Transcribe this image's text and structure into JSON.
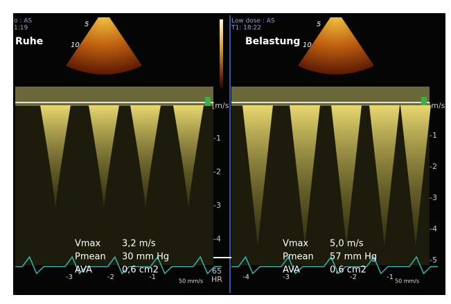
{
  "panels": [
    {
      "header": [
        "o : AS",
        "1:19"
      ],
      "label": "Ruhe",
      "depth": [
        "5",
        "10"
      ],
      "scale_unit": "[m/s",
      "scale": [
        "-1",
        "-2",
        "-3",
        "-4"
      ],
      "ecg": [
        "-3",
        "-2",
        "-1"
      ],
      "speed": "50 mm/s",
      "measurements": [
        [
          "Vmax",
          "3,2 m/s"
        ],
        [
          "Pmean",
          "30 mm Hg"
        ],
        [
          "AVA",
          "0,6 cm2"
        ]
      ]
    },
    {
      "header": [
        "Low dose : AS",
        "T1: 18:22"
      ],
      "label": "Belastung",
      "depth": [
        "5",
        "10"
      ],
      "scale_unit": "[m/s",
      "scale": [
        "-1",
        "-2",
        "-3",
        "-4",
        "-5"
      ],
      "ecg": [
        "-4",
        "-3",
        "-2",
        "-1"
      ],
      "speed": "50 mm/s",
      "measurements": [
        [
          "Vmax",
          "5,0 m/s"
        ],
        [
          "Pmean",
          "57 mm Hg"
        ],
        [
          "AVA",
          "0,6 cm2"
        ]
      ]
    }
  ],
  "hr": [
    "65",
    "HR"
  ]
}
